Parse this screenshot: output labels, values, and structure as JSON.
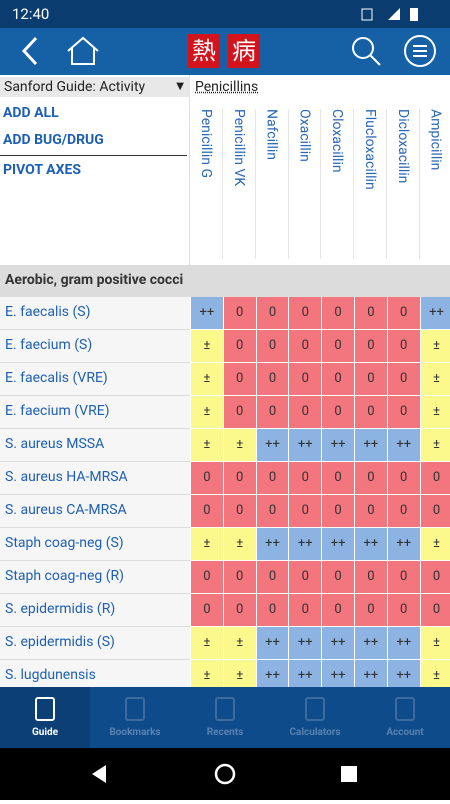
{
  "status_bar": {
    "time": "12:40"
  },
  "app_bar": {
    "logo": [
      "熱",
      "病"
    ]
  },
  "panel": {
    "dropdown": "Sanford Guide: Activity",
    "actions": [
      "ADD ALL",
      "ADD BUG/DRUG",
      "PIVOT AXES"
    ]
  },
  "table": {
    "group": "Penicillins",
    "columns": [
      "Penicillin G",
      "Penicillin VK",
      "Nafcillin",
      "Oxacillin",
      "Cloxacillin",
      "Flucloxacillin",
      "Dicloxacillin",
      "Ampicillin"
    ],
    "section": "Aerobic, gram positive cocci",
    "cell_colors": {
      "++": "#8db3e2",
      "0": "#f3767e",
      "±": "#fbf98c"
    },
    "rows": [
      {
        "label": "E. faecalis (S)",
        "cells": [
          "++",
          "0",
          "0",
          "0",
          "0",
          "0",
          "0",
          "++"
        ]
      },
      {
        "label": "E. faecium (S)",
        "cells": [
          "±",
          "0",
          "0",
          "0",
          "0",
          "0",
          "0",
          "±"
        ]
      },
      {
        "label": "E. faecalis (VRE)",
        "cells": [
          "±",
          "0",
          "0",
          "0",
          "0",
          "0",
          "0",
          "±"
        ]
      },
      {
        "label": "E. faecium (VRE)",
        "cells": [
          "±",
          "0",
          "0",
          "0",
          "0",
          "0",
          "0",
          "±"
        ]
      },
      {
        "label": "S. aureus MSSA",
        "cells": [
          "±",
          "±",
          "++",
          "++",
          "++",
          "++",
          "++",
          "±"
        ]
      },
      {
        "label": "S. aureus HA-MRSA",
        "cells": [
          "0",
          "0",
          "0",
          "0",
          "0",
          "0",
          "0",
          "0"
        ]
      },
      {
        "label": "S. aureus CA-MRSA",
        "cells": [
          "0",
          "0",
          "0",
          "0",
          "0",
          "0",
          "0",
          "0"
        ]
      },
      {
        "label": "Staph coag-neg (S)",
        "cells": [
          "±",
          "±",
          "++",
          "++",
          "++",
          "++",
          "++",
          "±"
        ]
      },
      {
        "label": "Staph coag-neg (R)",
        "cells": [
          "0",
          "0",
          "0",
          "0",
          "0",
          "0",
          "0",
          "0"
        ]
      },
      {
        "label": "S. epidermidis (R)",
        "cells": [
          "0",
          "0",
          "0",
          "0",
          "0",
          "0",
          "0",
          "0"
        ]
      },
      {
        "label": "S. epidermidis (S)",
        "cells": [
          "±",
          "±",
          "++",
          "++",
          "++",
          "++",
          "++",
          "±"
        ]
      },
      {
        "label": "S. lugdunensis",
        "cells": [
          "±",
          "±",
          "++",
          "++",
          "++",
          "++",
          "++",
          "±"
        ]
      }
    ]
  },
  "bottom_nav": [
    "Guide",
    "Bookmarks",
    "Recents",
    "Calculators",
    "Account"
  ]
}
